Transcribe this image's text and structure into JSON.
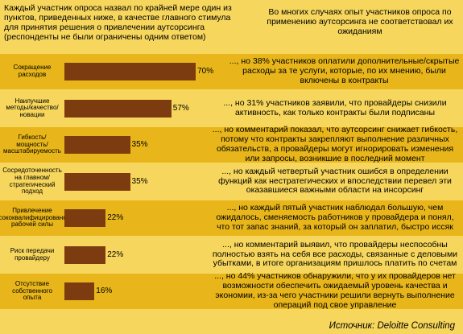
{
  "header": {
    "left": "Каждый участник опроса назвал по крайней мере один из пунктов, приведенных ниже, в качестве главного стимула для принятия решения о привлечении аутсорсинга (респонденты не были ограничены одним ответом)",
    "right": "Во многих случаях опыт участников опроса по применению аутсорсинга не соответствовал их ожиданиям"
  },
  "chart_data": {
    "type": "bar",
    "orientation": "horizontal",
    "categories": [
      "Сокращение расходов",
      "Наилучшие методы/качество/новации",
      "Гибкость/мощность/масштабируемость",
      "Сосредоточенность на главном/стратегический подход",
      "Привлечение высококвалифицированной рабочей силы",
      "Риск передачи провайдеру",
      "Отсутствие собственного опыта"
    ],
    "values": [
      70,
      57,
      35,
      35,
      22,
      22,
      16
    ],
    "value_labels": [
      "70%",
      "57%",
      "35%",
      "35%",
      "22%",
      "22%",
      "16%"
    ],
    "unit": "%",
    "xlim": [
      0,
      100
    ],
    "bar_color": "#7d3b10",
    "row_colors": [
      "#e8b61a",
      "#f6d65c"
    ],
    "notes": [
      "..., но 38% участников оплатили дополнительные/скрытые расходы за те услуги, которые, по их мнению, были включены в контракты",
      "..., но 31% участников заявили, что провайдеры снизили активность, как только контракты были подписаны",
      "..., но комментарий показал, что аутсорсинг снижает гибкость, потому что контракты закрепляют выполнение различных обязательств, а провайдеры могут игнорировать изменения или запросы, возникшие в последний момент",
      "..., но каждый четвертый участник ошибся в определении функций как нестратегических и впоследствии перевел эти оказавшиеся важными области на инсорсинг",
      "..., но каждый пятый участник наблюдал большую, чем ожидалось, сменяемость работников у провайдера и понял, что тот запас знаний, за который он заплатил, быстро иссяк",
      "..., но комментарий выявил, что провайдеры неспособны полностью взять на себя все расходы, связанные с деловыми убытками, в итоге организациям пришлось платить по счетам",
      "..., но 44% участников обнаружили, что у их провайдеров нет возможности обеспечить ожидаемый уровень качества и экономии, из-за чего участники решили вернуть выполнение операций под свое управление"
    ]
  },
  "source": "Источник: Deloitte Consulting"
}
